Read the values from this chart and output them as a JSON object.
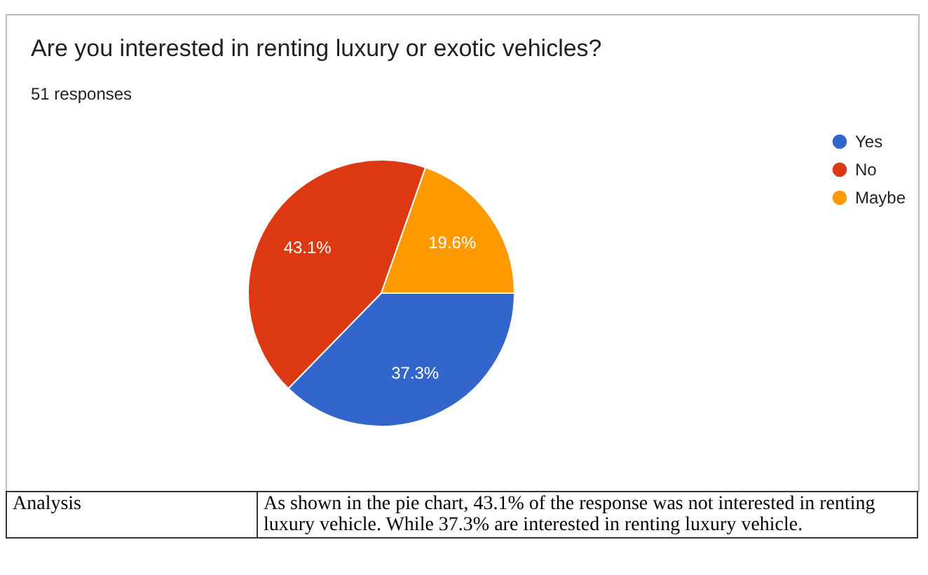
{
  "chart_data": {
    "type": "pie",
    "title": "Are you interested in renting luxury or exotic vehicles?",
    "subtitle": "51 responses",
    "categories": [
      "Yes",
      "No",
      "Maybe"
    ],
    "values": [
      37.3,
      43.1,
      19.6
    ],
    "colors": [
      "#3366cc",
      "#dc3912",
      "#ff9900"
    ],
    "value_labels": [
      "37.3%",
      "43.1%",
      "19.6%"
    ],
    "legend": "right",
    "annotations": [
      "Analysis",
      "As shown in the pie chart, 43.1% of the response was not interested in renting luxury vehicle. While 37.3% are interested in renting luxury vehicle."
    ]
  }
}
